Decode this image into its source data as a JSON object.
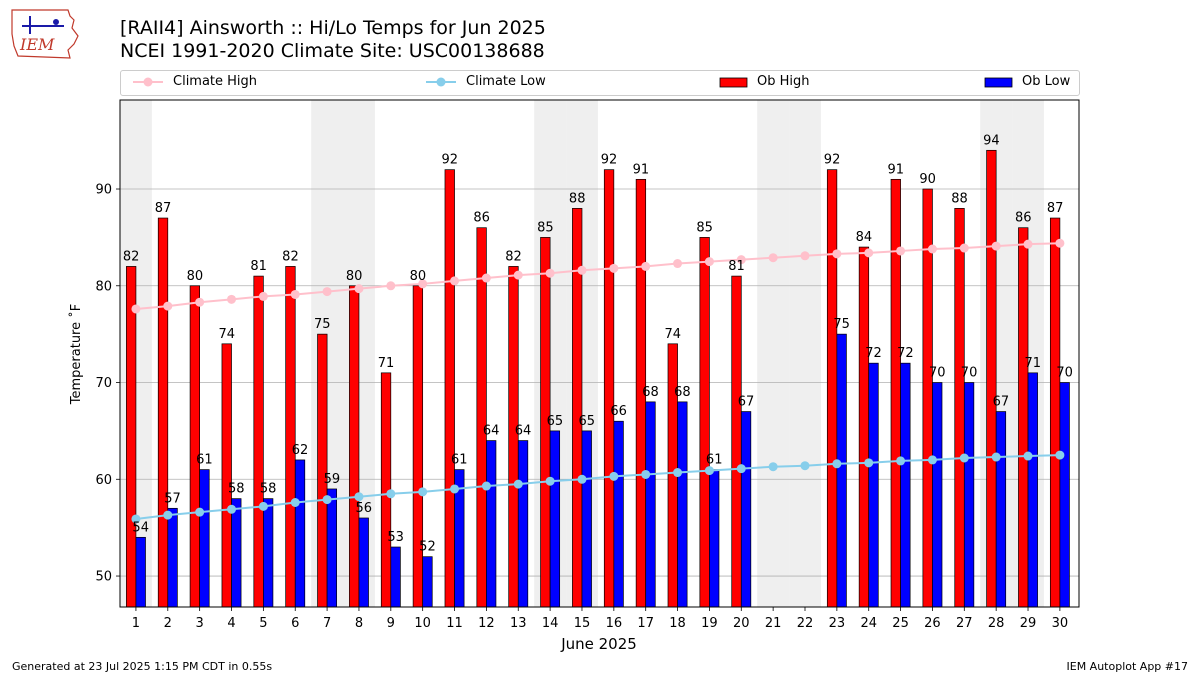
{
  "header": {
    "title_line1": "[RAII4] Ainsworth :: Hi/Lo Temps for Jun 2025",
    "title_line2": "NCEI 1991-2020 Climate Site: USC00138688",
    "logo_text": "IEM"
  },
  "legend": {
    "climate_high": "Climate High",
    "climate_low": "Climate Low",
    "ob_high": "Ob High",
    "ob_low": "Ob Low"
  },
  "colors": {
    "ob_high": "#ff0000",
    "ob_low": "#0000ff",
    "climate_high": "#ffc0cb",
    "climate_low": "#87ceeb",
    "weekend_shade": "#efefef",
    "grid": "#b0b0b0"
  },
  "footer": {
    "generated": "Generated at 23 Jul 2025 1:15 PM CDT in 0.55s",
    "app": "IEM Autoplot App #17"
  },
  "chart_data": {
    "type": "bar",
    "title": "[RAII4] Ainsworth :: Hi/Lo Temps for Jun 2025",
    "xlabel": "June 2025",
    "ylabel": "Temperature ˚F",
    "ylim": [
      46.8,
      99.2
    ],
    "yticks": [
      50,
      60,
      70,
      80,
      90
    ],
    "grid": "horizontal",
    "legend_position": "top",
    "categories": [
      "1",
      "2",
      "3",
      "4",
      "5",
      "6",
      "7",
      "8",
      "9",
      "10",
      "11",
      "12",
      "13",
      "14",
      "15",
      "16",
      "17",
      "18",
      "19",
      "20",
      "21",
      "22",
      "23",
      "24",
      "25",
      "26",
      "27",
      "28",
      "29",
      "30"
    ],
    "shaded_days": [
      1,
      7,
      8,
      14,
      15,
      21,
      22,
      28,
      29
    ],
    "series": [
      {
        "name": "Ob High",
        "kind": "bar",
        "values": [
          82,
          87,
          80,
          74,
          81,
          82,
          75,
          80,
          71,
          80,
          92,
          86,
          82,
          85,
          88,
          92,
          91,
          74,
          85,
          81,
          null,
          null,
          92,
          84,
          91,
          90,
          88,
          94,
          86,
          87
        ]
      },
      {
        "name": "Ob Low",
        "kind": "bar",
        "values": [
          54,
          57,
          61,
          58,
          58,
          62,
          59,
          56,
          53,
          52,
          61,
          64,
          64,
          65,
          65,
          66,
          68,
          68,
          61,
          67,
          null,
          null,
          75,
          72,
          72,
          70,
          70,
          67,
          71,
          70
        ]
      },
      {
        "name": "Climate High",
        "kind": "line",
        "values": [
          77.6,
          77.9,
          78.3,
          78.6,
          78.9,
          79.1,
          79.4,
          79.7,
          80.0,
          80.2,
          80.5,
          80.8,
          81.1,
          81.3,
          81.6,
          81.8,
          82.0,
          82.3,
          82.5,
          82.7,
          82.9,
          83.1,
          83.3,
          83.4,
          83.6,
          83.8,
          83.9,
          84.1,
          84.3,
          84.4
        ]
      },
      {
        "name": "Climate Low",
        "kind": "line",
        "values": [
          55.9,
          56.3,
          56.6,
          56.9,
          57.2,
          57.6,
          57.9,
          58.2,
          58.5,
          58.7,
          59.0,
          59.3,
          59.5,
          59.8,
          60.0,
          60.3,
          60.5,
          60.7,
          60.9,
          61.1,
          61.3,
          61.4,
          61.6,
          61.7,
          61.9,
          62.0,
          62.2,
          62.3,
          62.4,
          62.5
        ]
      }
    ]
  }
}
